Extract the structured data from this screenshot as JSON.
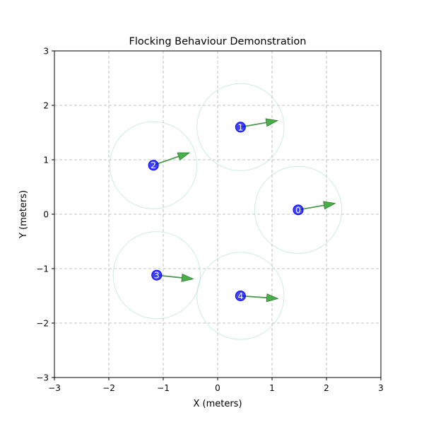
{
  "chart_data": {
    "type": "scatter",
    "title": "Flocking Behaviour Demonstration",
    "xlabel": "X (meters)",
    "ylabel": "Y (meters)",
    "xlim": [
      -3,
      3
    ],
    "ylim": [
      -3,
      3
    ],
    "xticks": [
      -3,
      -2,
      -1,
      0,
      1,
      2,
      3
    ],
    "yticks": [
      -3,
      -2,
      -1,
      0,
      1,
      2,
      3
    ],
    "xtick_labels": [
      "−3",
      "−2",
      "−1",
      "0",
      "1",
      "2",
      "3"
    ],
    "ytick_labels": [
      "−3",
      "−2",
      "−1",
      "0",
      "1",
      "2",
      "3"
    ],
    "grid": true,
    "agents": [
      {
        "id": "0",
        "x": 1.48,
        "y": 0.08,
        "vx": 0.68,
        "vy": 0.12,
        "radius": 0.8
      },
      {
        "id": "1",
        "x": 0.42,
        "y": 1.6,
        "vx": 0.68,
        "vy": 0.12,
        "radius": 0.8
      },
      {
        "id": "2",
        "x": -1.18,
        "y": 0.9,
        "vx": 0.66,
        "vy": 0.23,
        "radius": 0.8
      },
      {
        "id": "3",
        "x": -1.12,
        "y": -1.12,
        "vx": 0.67,
        "vy": -0.07,
        "radius": 0.8
      },
      {
        "id": "4",
        "x": 0.42,
        "y": -1.5,
        "vx": 0.69,
        "vy": -0.05,
        "radius": 0.8
      }
    ],
    "colors": {
      "agent": "#0000ff",
      "arrow": "#2ca02c",
      "radius_circle": "#8fd4c8",
      "grid": "#b0b0b0"
    }
  }
}
